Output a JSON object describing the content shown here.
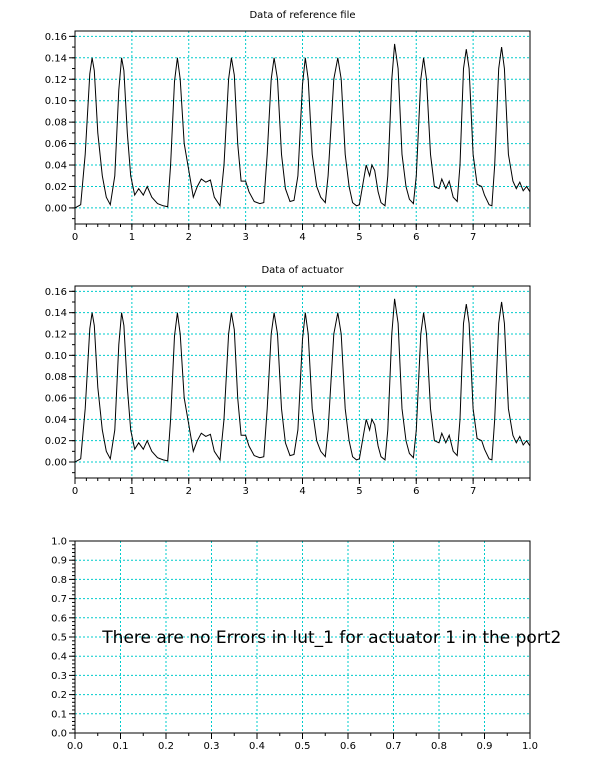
{
  "chart_data": [
    {
      "type": "line",
      "title": "Data of reference file",
      "xlabel": "",
      "ylabel": "",
      "xlim": [
        0,
        8
      ],
      "ylim": [
        -0.015,
        0.165
      ],
      "grid": true,
      "x_ticks": [
        "0",
        "1",
        "2",
        "3",
        "4",
        "5",
        "6",
        "7"
      ],
      "y_ticks": [
        "0.00",
        "0.02",
        "0.04",
        "0.06",
        "0.08",
        "0.10",
        "0.12",
        "0.14",
        "0.16"
      ],
      "series": [
        {
          "points": [
            [
              0.0,
              0.0
            ],
            [
              0.1,
              0.003
            ],
            [
              0.18,
              0.05
            ],
            [
              0.26,
              0.125
            ],
            [
              0.3,
              0.14
            ],
            [
              0.34,
              0.128
            ],
            [
              0.4,
              0.07
            ],
            [
              0.48,
              0.03
            ],
            [
              0.55,
              0.01
            ],
            [
              0.62,
              0.003
            ],
            [
              0.7,
              0.03
            ],
            [
              0.77,
              0.11
            ],
            [
              0.82,
              0.14
            ],
            [
              0.86,
              0.128
            ],
            [
              0.92,
              0.07
            ],
            [
              0.98,
              0.03
            ],
            [
              1.05,
              0.012
            ],
            [
              1.12,
              0.018
            ],
            [
              1.2,
              0.012
            ],
            [
              1.27,
              0.02
            ],
            [
              1.35,
              0.01
            ],
            [
              1.45,
              0.004
            ],
            [
              1.55,
              0.002
            ],
            [
              1.63,
              0.001
            ],
            [
              1.68,
              0.04
            ],
            [
              1.75,
              0.118
            ],
            [
              1.8,
              0.14
            ],
            [
              1.85,
              0.12
            ],
            [
              1.92,
              0.06
            ],
            [
              2.0,
              0.035
            ],
            [
              2.08,
              0.01
            ],
            [
              2.15,
              0.02
            ],
            [
              2.22,
              0.027
            ],
            [
              2.3,
              0.024
            ],
            [
              2.38,
              0.026
            ],
            [
              2.45,
              0.01
            ],
            [
              2.55,
              0.002
            ],
            [
              2.62,
              0.04
            ],
            [
              2.7,
              0.12
            ],
            [
              2.75,
              0.14
            ],
            [
              2.8,
              0.124
            ],
            [
              2.86,
              0.06
            ],
            [
              2.92,
              0.025
            ],
            [
              3.0,
              0.025
            ],
            [
              3.06,
              0.015
            ],
            [
              3.15,
              0.006
            ],
            [
              3.25,
              0.004
            ],
            [
              3.32,
              0.005
            ],
            [
              3.38,
              0.05
            ],
            [
              3.45,
              0.12
            ],
            [
              3.5,
              0.14
            ],
            [
              3.56,
              0.12
            ],
            [
              3.63,
              0.05
            ],
            [
              3.7,
              0.018
            ],
            [
              3.78,
              0.006
            ],
            [
              3.85,
              0.007
            ],
            [
              3.92,
              0.03
            ],
            [
              4.0,
              0.115
            ],
            [
              4.05,
              0.14
            ],
            [
              4.1,
              0.12
            ],
            [
              4.17,
              0.05
            ],
            [
              4.25,
              0.02
            ],
            [
              4.32,
              0.01
            ],
            [
              4.4,
              0.005
            ],
            [
              4.45,
              0.03
            ],
            [
              4.55,
              0.12
            ],
            [
              4.62,
              0.14
            ],
            [
              4.68,
              0.12
            ],
            [
              4.75,
              0.05
            ],
            [
              4.82,
              0.02
            ],
            [
              4.88,
              0.005
            ],
            [
              4.95,
              0.002
            ],
            [
              5.0,
              0.003
            ],
            [
              5.07,
              0.025
            ],
            [
              5.12,
              0.04
            ],
            [
              5.18,
              0.03
            ],
            [
              5.22,
              0.04
            ],
            [
              5.27,
              0.035
            ],
            [
              5.33,
              0.015
            ],
            [
              5.38,
              0.005
            ],
            [
              5.45,
              0.002
            ],
            [
              5.5,
              0.03
            ],
            [
              5.57,
              0.12
            ],
            [
              5.62,
              0.153
            ],
            [
              5.68,
              0.13
            ],
            [
              5.75,
              0.05
            ],
            [
              5.82,
              0.02
            ],
            [
              5.88,
              0.008
            ],
            [
              5.95,
              0.004
            ],
            [
              6.0,
              0.03
            ],
            [
              6.08,
              0.12
            ],
            [
              6.13,
              0.14
            ],
            [
              6.18,
              0.12
            ],
            [
              6.25,
              0.05
            ],
            [
              6.32,
              0.02
            ],
            [
              6.4,
              0.018
            ],
            [
              6.45,
              0.027
            ],
            [
              6.52,
              0.018
            ],
            [
              6.58,
              0.025
            ],
            [
              6.65,
              0.01
            ],
            [
              6.72,
              0.006
            ],
            [
              6.77,
              0.04
            ],
            [
              6.83,
              0.13
            ],
            [
              6.88,
              0.148
            ],
            [
              6.93,
              0.13
            ],
            [
              7.0,
              0.05
            ],
            [
              7.07,
              0.022
            ],
            [
              7.15,
              0.02
            ],
            [
              7.2,
              0.012
            ],
            [
              7.28,
              0.003
            ],
            [
              7.33,
              0.002
            ],
            [
              7.38,
              0.04
            ],
            [
              7.45,
              0.13
            ],
            [
              7.5,
              0.15
            ],
            [
              7.55,
              0.13
            ],
            [
              7.62,
              0.05
            ],
            [
              7.7,
              0.025
            ],
            [
              7.76,
              0.018
            ],
            [
              7.82,
              0.024
            ],
            [
              7.88,
              0.016
            ],
            [
              7.94,
              0.02
            ],
            [
              8.0,
              0.015
            ]
          ]
        }
      ]
    },
    {
      "type": "line",
      "title": "Data of actuator",
      "xlabel": "",
      "ylabel": "",
      "xlim": [
        0,
        8
      ],
      "ylim": [
        -0.015,
        0.165
      ],
      "grid": true,
      "x_ticks": [
        "0",
        "1",
        "2",
        "3",
        "4",
        "5",
        "6",
        "7"
      ],
      "y_ticks": [
        "0.00",
        "0.02",
        "0.04",
        "0.06",
        "0.08",
        "0.10",
        "0.12",
        "0.14",
        "0.16"
      ],
      "series": [
        {
          "points": [
            [
              0.0,
              0.0
            ],
            [
              0.1,
              0.003
            ],
            [
              0.18,
              0.05
            ],
            [
              0.26,
              0.125
            ],
            [
              0.3,
              0.14
            ],
            [
              0.34,
              0.128
            ],
            [
              0.4,
              0.07
            ],
            [
              0.48,
              0.03
            ],
            [
              0.55,
              0.01
            ],
            [
              0.62,
              0.003
            ],
            [
              0.7,
              0.03
            ],
            [
              0.77,
              0.11
            ],
            [
              0.82,
              0.14
            ],
            [
              0.86,
              0.128
            ],
            [
              0.92,
              0.07
            ],
            [
              0.98,
              0.03
            ],
            [
              1.05,
              0.012
            ],
            [
              1.12,
              0.018
            ],
            [
              1.2,
              0.012
            ],
            [
              1.27,
              0.02
            ],
            [
              1.35,
              0.01
            ],
            [
              1.45,
              0.004
            ],
            [
              1.55,
              0.002
            ],
            [
              1.63,
              0.001
            ],
            [
              1.68,
              0.04
            ],
            [
              1.75,
              0.118
            ],
            [
              1.8,
              0.14
            ],
            [
              1.85,
              0.12
            ],
            [
              1.92,
              0.06
            ],
            [
              2.0,
              0.035
            ],
            [
              2.08,
              0.01
            ],
            [
              2.15,
              0.02
            ],
            [
              2.22,
              0.027
            ],
            [
              2.3,
              0.024
            ],
            [
              2.38,
              0.026
            ],
            [
              2.45,
              0.01
            ],
            [
              2.55,
              0.002
            ],
            [
              2.62,
              0.04
            ],
            [
              2.7,
              0.12
            ],
            [
              2.75,
              0.14
            ],
            [
              2.8,
              0.124
            ],
            [
              2.86,
              0.06
            ],
            [
              2.92,
              0.025
            ],
            [
              3.0,
              0.025
            ],
            [
              3.06,
              0.015
            ],
            [
              3.15,
              0.006
            ],
            [
              3.25,
              0.004
            ],
            [
              3.32,
              0.005
            ],
            [
              3.38,
              0.05
            ],
            [
              3.45,
              0.12
            ],
            [
              3.5,
              0.14
            ],
            [
              3.56,
              0.12
            ],
            [
              3.63,
              0.05
            ],
            [
              3.7,
              0.018
            ],
            [
              3.78,
              0.006
            ],
            [
              3.85,
              0.007
            ],
            [
              3.92,
              0.03
            ],
            [
              4.0,
              0.115
            ],
            [
              4.05,
              0.14
            ],
            [
              4.1,
              0.12
            ],
            [
              4.17,
              0.05
            ],
            [
              4.25,
              0.02
            ],
            [
              4.32,
              0.01
            ],
            [
              4.4,
              0.005
            ],
            [
              4.45,
              0.03
            ],
            [
              4.55,
              0.12
            ],
            [
              4.62,
              0.14
            ],
            [
              4.68,
              0.12
            ],
            [
              4.75,
              0.05
            ],
            [
              4.82,
              0.02
            ],
            [
              4.88,
              0.005
            ],
            [
              4.95,
              0.002
            ],
            [
              5.0,
              0.003
            ],
            [
              5.07,
              0.025
            ],
            [
              5.12,
              0.04
            ],
            [
              5.18,
              0.03
            ],
            [
              5.22,
              0.04
            ],
            [
              5.27,
              0.035
            ],
            [
              5.33,
              0.015
            ],
            [
              5.38,
              0.005
            ],
            [
              5.45,
              0.002
            ],
            [
              5.5,
              0.03
            ],
            [
              5.57,
              0.12
            ],
            [
              5.62,
              0.153
            ],
            [
              5.68,
              0.13
            ],
            [
              5.75,
              0.05
            ],
            [
              5.82,
              0.02
            ],
            [
              5.88,
              0.008
            ],
            [
              5.95,
              0.004
            ],
            [
              6.0,
              0.03
            ],
            [
              6.08,
              0.12
            ],
            [
              6.13,
              0.14
            ],
            [
              6.18,
              0.12
            ],
            [
              6.25,
              0.05
            ],
            [
              6.32,
              0.02
            ],
            [
              6.4,
              0.018
            ],
            [
              6.45,
              0.027
            ],
            [
              6.52,
              0.018
            ],
            [
              6.58,
              0.025
            ],
            [
              6.65,
              0.01
            ],
            [
              6.72,
              0.006
            ],
            [
              6.77,
              0.04
            ],
            [
              6.83,
              0.13
            ],
            [
              6.88,
              0.148
            ],
            [
              6.93,
              0.13
            ],
            [
              7.0,
              0.05
            ],
            [
              7.07,
              0.022
            ],
            [
              7.15,
              0.02
            ],
            [
              7.2,
              0.012
            ],
            [
              7.28,
              0.003
            ],
            [
              7.33,
              0.002
            ],
            [
              7.38,
              0.04
            ],
            [
              7.45,
              0.13
            ],
            [
              7.5,
              0.15
            ],
            [
              7.55,
              0.13
            ],
            [
              7.62,
              0.05
            ],
            [
              7.7,
              0.025
            ],
            [
              7.76,
              0.018
            ],
            [
              7.82,
              0.024
            ],
            [
              7.88,
              0.016
            ],
            [
              7.94,
              0.02
            ],
            [
              8.0,
              0.015
            ]
          ]
        }
      ]
    },
    {
      "type": "line",
      "title": "",
      "xlabel": "",
      "ylabel": "",
      "xlim": [
        0,
        1
      ],
      "ylim": [
        0,
        1
      ],
      "grid": true,
      "x_ticks": [
        "0.0",
        "0.1",
        "0.2",
        "0.3",
        "0.4",
        "0.5",
        "0.6",
        "0.7",
        "0.8",
        "0.9",
        "1.0"
      ],
      "y_ticks": [
        "0.0",
        "0.1",
        "0.2",
        "0.3",
        "0.4",
        "0.5",
        "0.6",
        "0.7",
        "0.8",
        "0.9",
        "1.0"
      ],
      "series": [],
      "annotation": {
        "text": "There are no Errors in lut_1 for actuator 1 in the port2",
        "x": 0.06,
        "y": 0.5
      }
    }
  ],
  "colors": {
    "grid": "#00cccc",
    "line": "#000000",
    "axes": "#000000"
  }
}
